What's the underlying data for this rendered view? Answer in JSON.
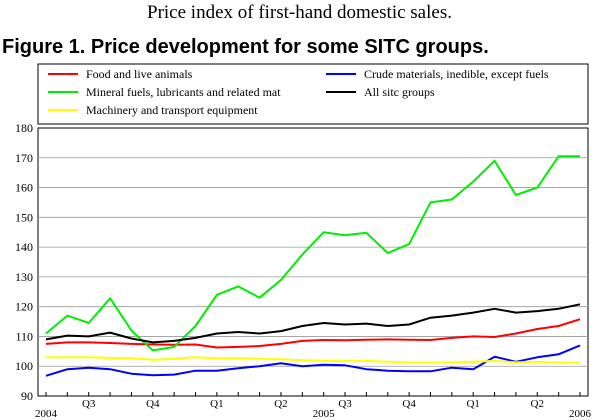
{
  "header": {
    "subtitle": "Price index of first-hand domestic sales.",
    "figure_title": "Figure 1. Price development for some SITC groups."
  },
  "chart_data": {
    "type": "line",
    "title": "Figure 1. Price development for some SITC groups.",
    "xlabel": "",
    "ylabel": "",
    "ylim": [
      90,
      180
    ],
    "yticks": [
      90,
      100,
      110,
      120,
      130,
      140,
      150,
      160,
      170,
      180
    ],
    "grid": true,
    "legend_position": "top",
    "x": [
      "2004-06",
      "2004-07",
      "2004-08",
      "2004-09",
      "2004-10",
      "2004-11",
      "2004-12",
      "2005-01",
      "2005-02",
      "2005-03",
      "2005-04",
      "2005-05",
      "2005-06",
      "2005-07",
      "2005-08",
      "2005-09",
      "2005-10",
      "2005-11",
      "2005-12",
      "2006-01",
      "2006-02",
      "2006-03",
      "2006-04",
      "2006-05",
      "2006-06",
      "2006-07"
    ],
    "x_tick_labels": [
      {
        "x": "2004-06",
        "label": "2004"
      },
      {
        "x": "2004-08",
        "label": "Q3"
      },
      {
        "x": "2004-11",
        "label": "Q4"
      },
      {
        "x": "2005-02",
        "label": "Q1"
      },
      {
        "x": "2005-05",
        "label": "Q2"
      },
      {
        "x": "2005-07",
        "label": "2005"
      },
      {
        "x": "2005-08",
        "label": "Q3"
      },
      {
        "x": "2005-11",
        "label": "Q4"
      },
      {
        "x": "2006-02",
        "label": "Q1"
      },
      {
        "x": "2006-05",
        "label": "Q2"
      },
      {
        "x": "2006-07",
        "label": "2006"
      }
    ],
    "series": [
      {
        "name": "Food and live animals",
        "color": "#ff0000",
        "values": [
          107.5,
          108.0,
          108.0,
          107.8,
          107.5,
          107.3,
          107.2,
          107.3,
          106.3,
          106.5,
          106.8,
          107.5,
          108.5,
          108.8,
          108.7,
          108.9,
          109.0,
          108.9,
          108.8,
          109.5,
          110.0,
          109.8,
          111.0,
          112.5,
          113.5,
          115.8
        ]
      },
      {
        "name": "Crude materials, inedible, except fuels",
        "color": "#0000ff",
        "values": [
          96.8,
          99.0,
          99.5,
          99.0,
          97.5,
          97.0,
          97.2,
          98.5,
          98.5,
          99.3,
          100.0,
          101.0,
          100.0,
          100.5,
          100.3,
          99.0,
          98.5,
          98.3,
          98.3,
          99.5,
          99.0,
          103.2,
          101.5,
          103.0,
          104.0,
          107.0
        ]
      },
      {
        "name": "Mineral fuels, lubricants and related mat",
        "color": "#00ee00",
        "values": [
          111.0,
          117.0,
          114.5,
          122.8,
          112.0,
          105.3,
          106.5,
          113.5,
          124.0,
          126.8,
          123.0,
          129.0,
          137.5,
          145.0,
          144.0,
          144.8,
          138.0,
          141.0,
          155.0,
          156.0,
          162.0,
          169.0,
          157.5,
          160.0,
          170.5,
          170.5
        ]
      },
      {
        "name": "All sitc groups",
        "color": "#000000",
        "values": [
          109.0,
          110.3,
          110.0,
          111.3,
          109.3,
          108.0,
          108.5,
          109.5,
          111.0,
          111.5,
          111.0,
          111.8,
          113.5,
          114.5,
          114.0,
          114.3,
          113.5,
          114.0,
          116.3,
          117.0,
          118.0,
          119.3,
          118.0,
          118.5,
          119.3,
          120.8
        ]
      },
      {
        "name": "Machinery and transport equipment",
        "color": "#ffff00",
        "values": [
          103.0,
          103.0,
          103.0,
          102.8,
          102.7,
          102.2,
          102.5,
          103.0,
          102.7,
          102.7,
          102.5,
          102.3,
          102.0,
          101.8,
          101.8,
          101.8,
          101.5,
          101.2,
          101.2,
          101.3,
          101.5,
          101.8,
          101.3,
          101.5,
          101.2,
          101.2
        ]
      }
    ]
  }
}
